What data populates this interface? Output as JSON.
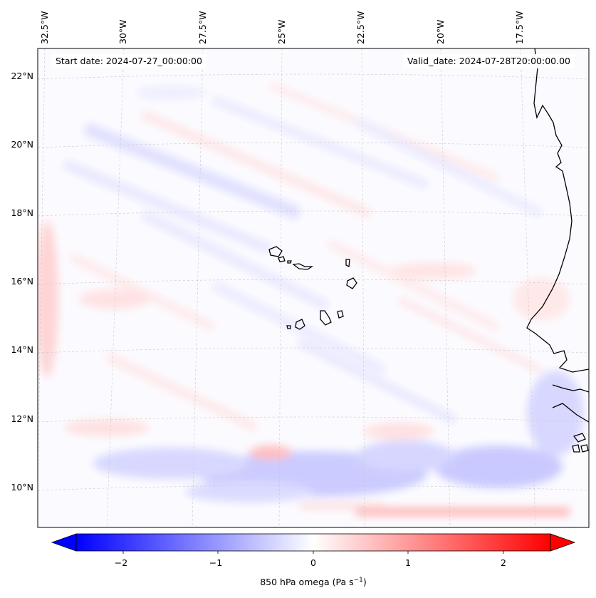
{
  "header": {
    "start_date": "Start date: 2024-07-27_00:00:00",
    "valid_date": "Valid_date: 2024-07-28T20:00:00.00"
  },
  "map": {
    "lon_labels": [
      "32.5°W",
      "30°W",
      "27.5°W",
      "25°W",
      "22.5°W",
      "20°W",
      "17.5°W"
    ],
    "lat_labels": [
      "22°N",
      "20°N",
      "18°N",
      "16°N",
      "14°N",
      "12°N",
      "10°N"
    ],
    "variable": "850 hPa omega"
  },
  "colorbar": {
    "ticks": [
      "−2",
      "−1",
      "0",
      "1",
      "2"
    ],
    "label_main": "850 hPa omega (Pa s",
    "label_sup": "−1",
    "label_end": ")",
    "colors": {
      "min": "#0000ff",
      "mid": "#ffffff",
      "max": "#ff0000"
    }
  }
}
